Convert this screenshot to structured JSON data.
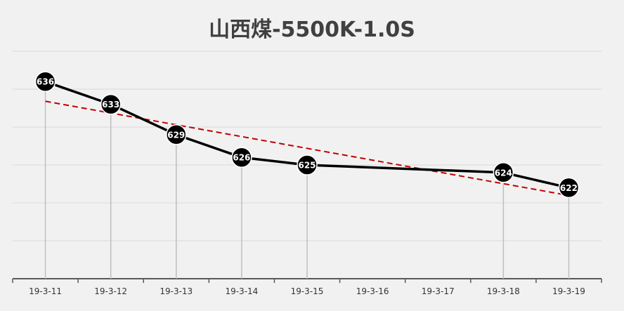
{
  "chart_data": {
    "type": "line",
    "title": "山西煤-5500K-1.0S",
    "xlabel": "",
    "ylabel": "",
    "categories": [
      "19-3-11",
      "19-3-12",
      "19-3-13",
      "19-3-14",
      "19-3-15",
      "19-3-16",
      "19-3-17",
      "19-3-18",
      "19-3-19"
    ],
    "series": [
      {
        "values": [
          636,
          633,
          629,
          626,
          625,
          null,
          null,
          624,
          622
        ],
        "color": "#000000",
        "marker": "circle",
        "data_labels": true,
        "drop_lines": true
      }
    ],
    "trendline": {
      "type": "linear",
      "color": "#c00000",
      "style": "dashed"
    },
    "ylim": [
      610,
      640
    ],
    "y_tick_labels_shown": false,
    "grid": true,
    "legend": "none"
  },
  "colors": {
    "background": "#f2f1f1",
    "gridline": "#d9d9d9",
    "axis": "#595959",
    "drop_line": "#bfbfbf",
    "series": "#000000",
    "trendline": "#c00000"
  }
}
